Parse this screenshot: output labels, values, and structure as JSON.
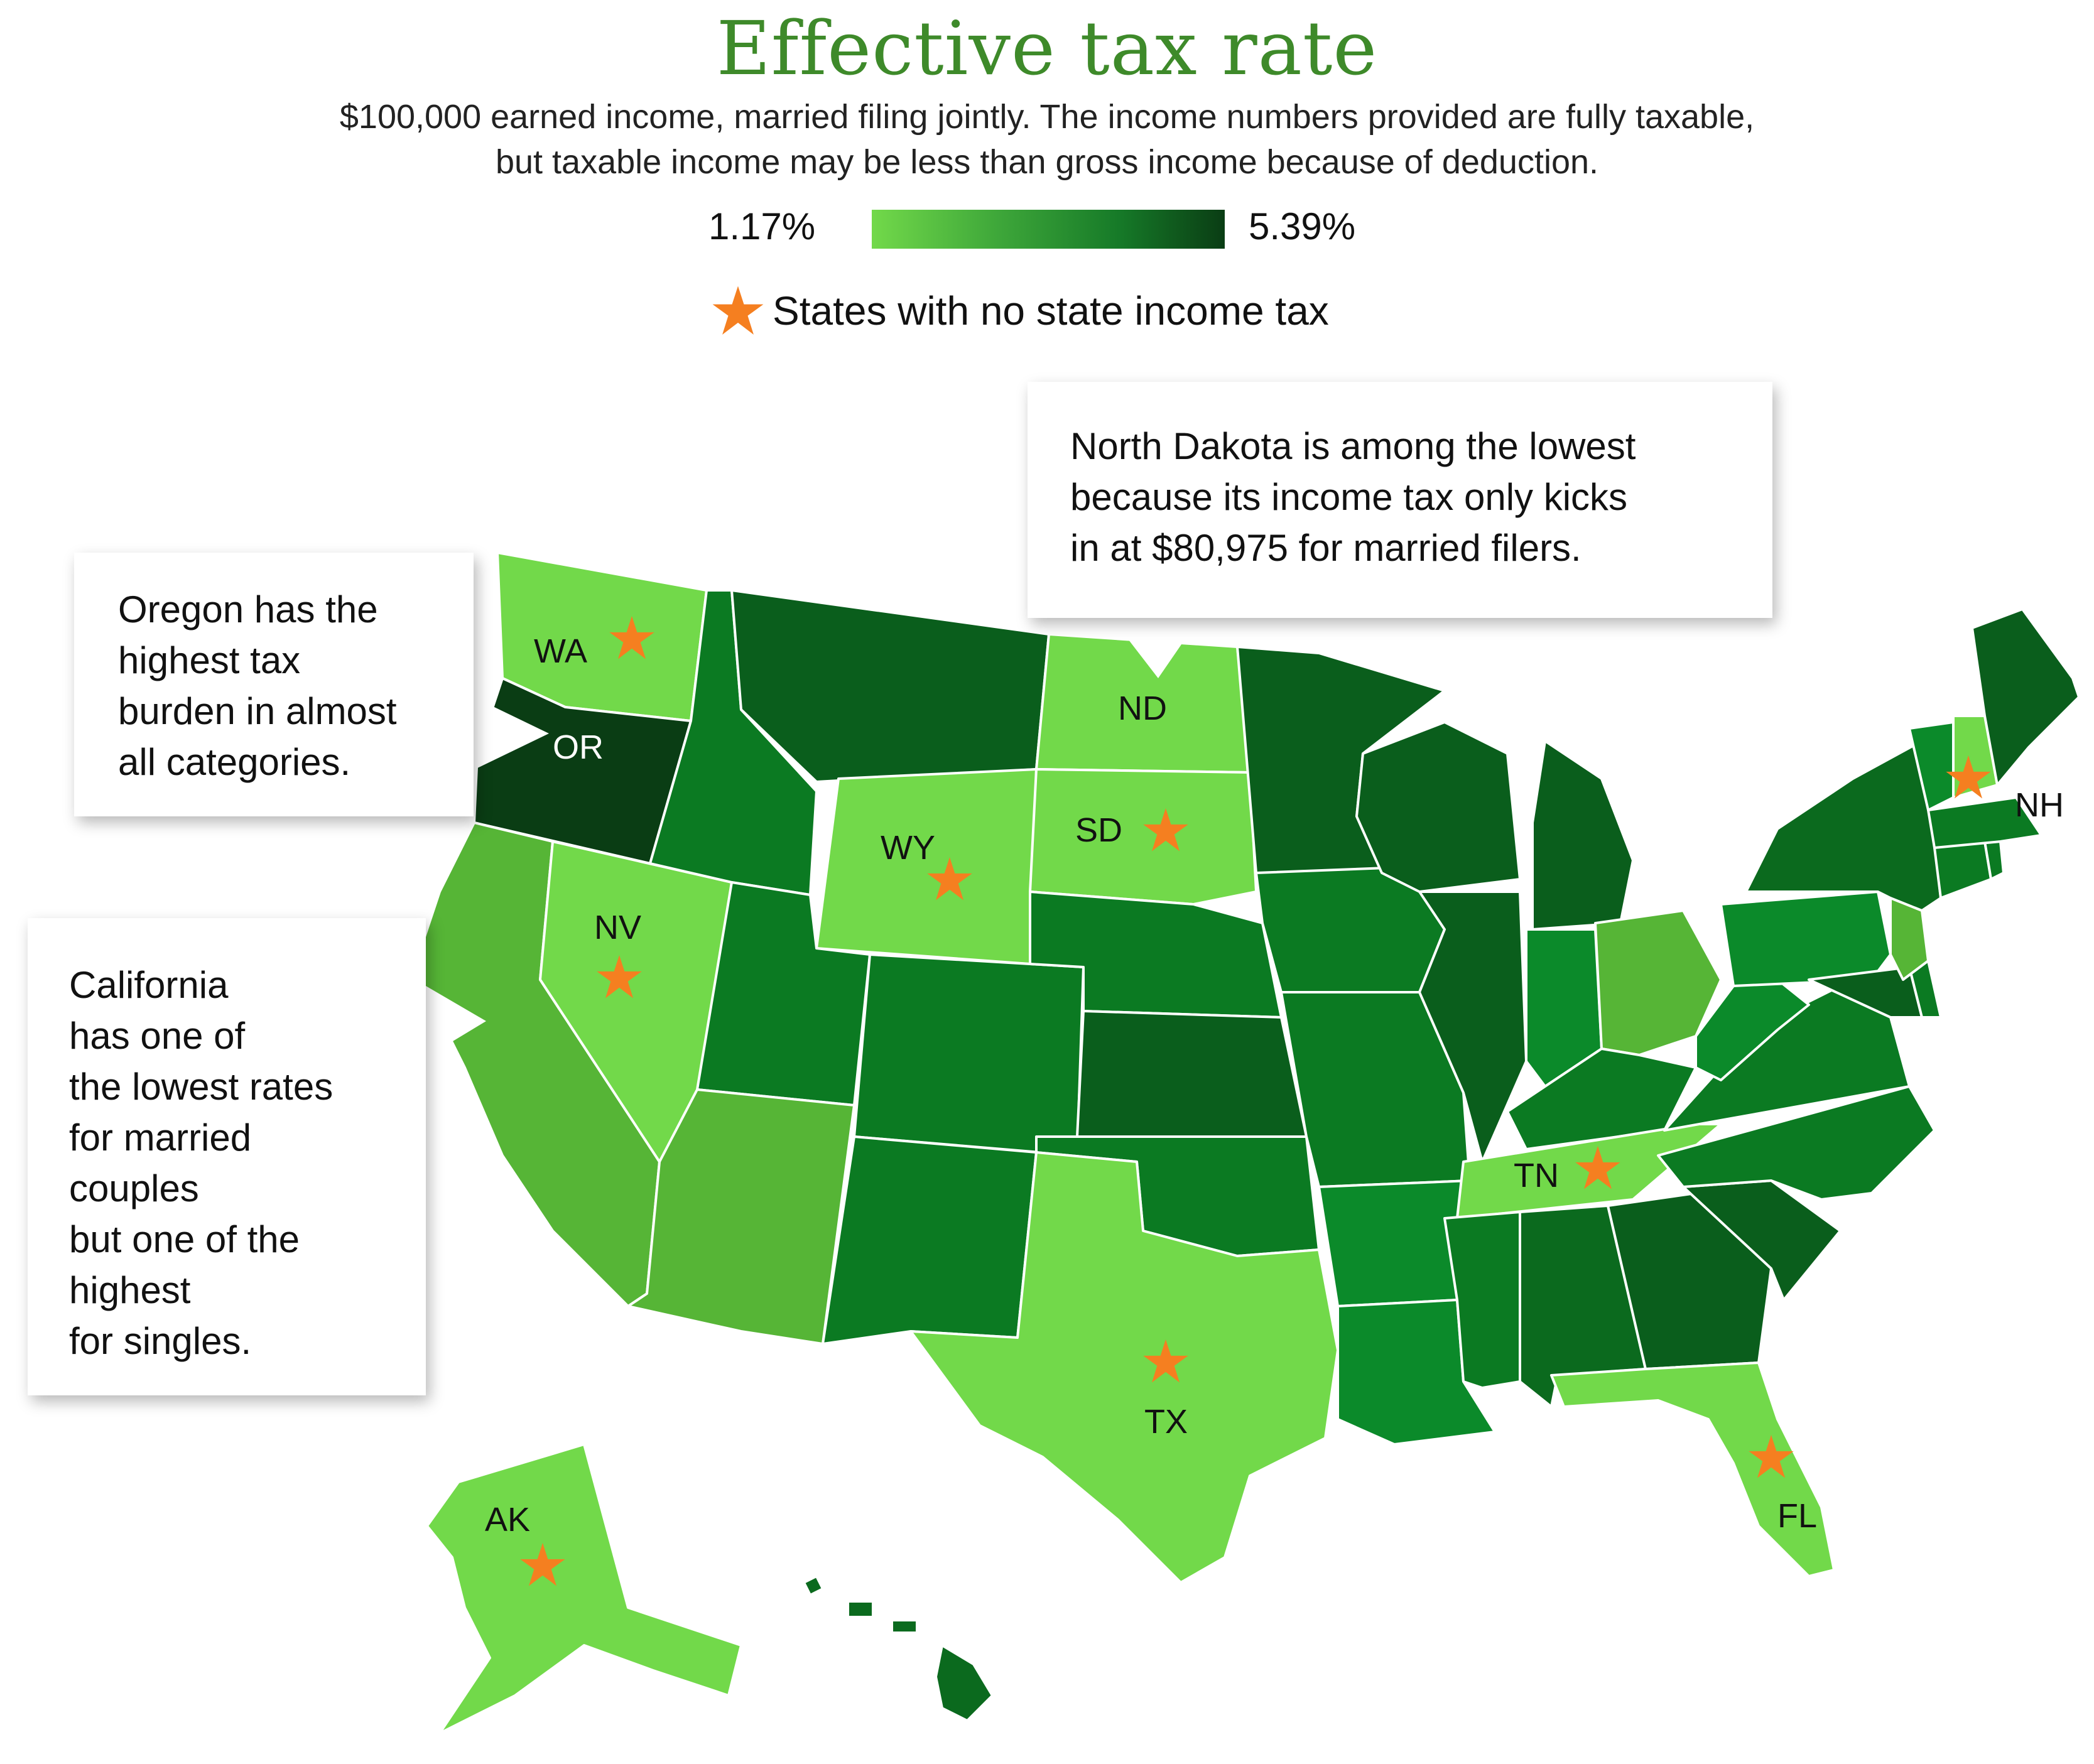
{
  "title": "Effective tax rate",
  "subtitle_line1": "$100,000 earned income, married filing jointly. The income numbers provided are fully taxable,",
  "subtitle_line2": "but taxable income may be less than gross income because of deduction.",
  "scale": {
    "min": "1.17%",
    "max": "5.39%",
    "colors": [
      "#72d94a",
      "#3fa83a",
      "#167a28",
      "#0a3d14"
    ]
  },
  "legend": {
    "star_label": "States with no state income tax",
    "star_color": "#f57f20",
    "star_icon": "star-icon"
  },
  "state_labels": {
    "WA": "WA",
    "OR": "OR",
    "NV": "NV",
    "WY": "WY",
    "SD": "SD",
    "ND": "ND",
    "TX": "TX",
    "TN": "TN",
    "FL": "FL",
    "AK": "AK",
    "NH": "NH"
  },
  "no_income_tax_states": [
    "WA",
    "NV",
    "WY",
    "SD",
    "TX",
    "TN",
    "FL",
    "AK",
    "NH"
  ],
  "callouts": {
    "oregon": "Oregon has the\nhighest tax\nburden in almost\nall categories.",
    "north_dakota": "North Dakota is among the lowest\nbecause its income tax only kicks\nin at $80,975 for married filers.",
    "california": "California\nhas one of\nthe lowest rates\nfor married\ncouples\nbut one of the\nhighest\nfor singles."
  }
}
